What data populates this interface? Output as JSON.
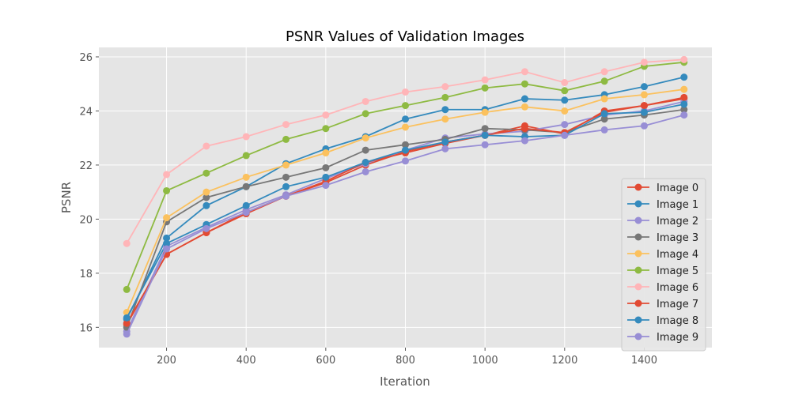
{
  "chart_data": {
    "type": "line",
    "title": "PSNR Values of Validation Images",
    "xlabel": "Iteration",
    "ylabel": "PSNR",
    "xlim": [
      30,
      1570
    ],
    "ylim": [
      15.25,
      26.35
    ],
    "xticks": [
      200,
      400,
      600,
      800,
      1000,
      1200,
      1400
    ],
    "yticks": [
      16,
      18,
      20,
      22,
      24,
      26
    ],
    "grid": true,
    "legend_position": "lower-right",
    "x": [
      100,
      200,
      300,
      400,
      500,
      600,
      700,
      800,
      900,
      1000,
      1100,
      1200,
      1300,
      1400,
      1500
    ],
    "series": [
      {
        "name": "Image 0",
        "color": "#e24a33",
        "values": [
          16.1,
          18.7,
          19.5,
          20.2,
          20.85,
          21.35,
          22.0,
          22.5,
          22.85,
          23.1,
          23.45,
          23.15,
          24.0,
          24.2,
          24.45
        ]
      },
      {
        "name": "Image 1",
        "color": "#348abd",
        "values": [
          16.3,
          19.3,
          20.5,
          21.2,
          22.05,
          22.6,
          23.05,
          23.7,
          24.05,
          24.05,
          24.45,
          24.4,
          24.6,
          24.9,
          25.25
        ]
      },
      {
        "name": "Image 2",
        "color": "#988ed5",
        "values": [
          15.85,
          19.0,
          19.7,
          20.35,
          20.9,
          21.5,
          22.05,
          22.55,
          23.0,
          23.15,
          23.25,
          23.5,
          23.85,
          24.0,
          24.35
        ]
      },
      {
        "name": "Image 3",
        "color": "#777777",
        "values": [
          16.0,
          19.9,
          20.8,
          21.2,
          21.55,
          21.9,
          22.55,
          22.75,
          22.95,
          23.35,
          23.3,
          23.2,
          23.7,
          23.85,
          24.05
        ]
      },
      {
        "name": "Image 4",
        "color": "#fbc15e",
        "values": [
          16.55,
          20.05,
          21.0,
          21.55,
          22.0,
          22.45,
          23.0,
          23.4,
          23.7,
          23.95,
          24.15,
          24.0,
          24.45,
          24.6,
          24.8
        ]
      },
      {
        "name": "Image 5",
        "color": "#8eba42",
        "values": [
          17.4,
          21.05,
          21.7,
          22.35,
          22.95,
          23.35,
          23.9,
          24.2,
          24.5,
          24.85,
          25.0,
          24.75,
          25.1,
          25.65,
          25.8
        ]
      },
      {
        "name": "Image 6",
        "color": "#ffb5b8",
        "values": [
          19.1,
          21.65,
          22.7,
          23.05,
          23.5,
          23.85,
          24.35,
          24.7,
          24.9,
          25.15,
          25.45,
          25.05,
          25.45,
          25.8,
          25.9
        ]
      },
      {
        "name": "Image 7",
        "color": "#e24a33",
        "values": [
          16.15,
          18.7,
          19.5,
          20.25,
          20.85,
          21.4,
          22.1,
          22.45,
          22.8,
          23.1,
          23.35,
          23.2,
          23.95,
          24.2,
          24.5
        ]
      },
      {
        "name": "Image 8",
        "color": "#348abd",
        "values": [
          16.35,
          19.1,
          19.8,
          20.5,
          21.2,
          21.55,
          22.1,
          22.55,
          22.85,
          23.1,
          23.05,
          23.1,
          23.9,
          23.95,
          24.25
        ]
      },
      {
        "name": "Image 9",
        "color": "#988ed5",
        "values": [
          15.75,
          18.9,
          19.65,
          20.25,
          20.85,
          21.25,
          21.75,
          22.15,
          22.6,
          22.75,
          22.9,
          23.1,
          23.3,
          23.45,
          23.85
        ]
      }
    ]
  }
}
